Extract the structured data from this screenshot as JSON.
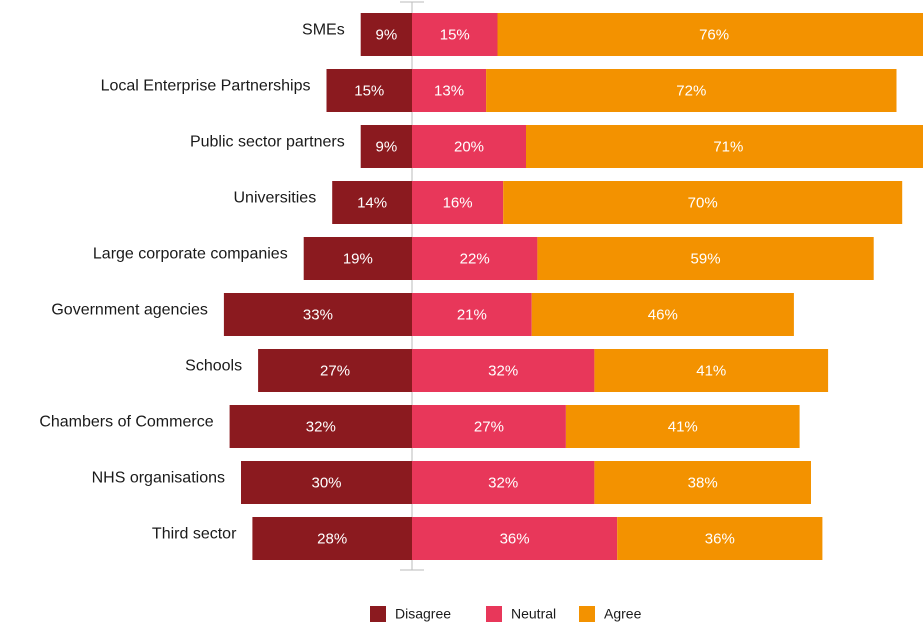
{
  "chart_data": {
    "type": "diverging_bar",
    "categories": [
      "SMEs",
      "Local Enterprise Partnerships",
      "Public sector partners",
      "Universities",
      "Large corporate companies",
      "Government agencies",
      "Schools",
      "Chambers of Commerce",
      "NHS organisations",
      "Third sector"
    ],
    "series": [
      {
        "name": "Disagree",
        "color": "#8b1a1f",
        "side": "left",
        "values": [
          9,
          15,
          9,
          14,
          19,
          33,
          27,
          32,
          30,
          28
        ],
        "value_labels": [
          "9%",
          "15%",
          "9%",
          "14%",
          "19%",
          "33%",
          "27%",
          "32%",
          "30%",
          "28%"
        ]
      },
      {
        "name": "Neutral",
        "color": "#e8375a",
        "side": "right",
        "values": [
          15,
          13,
          20,
          16,
          22,
          21,
          32,
          27,
          32,
          36
        ],
        "value_labels": [
          "15%",
          "13%",
          "20%",
          "16%",
          "22%",
          "21%",
          "32%",
          "27%",
          "32%",
          "36%"
        ]
      },
      {
        "name": "Agree",
        "color": "#f39200",
        "side": "right",
        "values": [
          76,
          72,
          71,
          70,
          59,
          46,
          41,
          41,
          38,
          36
        ],
        "value_labels": [
          "76%",
          "72%",
          "71%",
          "70%",
          "59%",
          "46%",
          "41%",
          "41%",
          "38%",
          "36%"
        ]
      }
    ],
    "legend": "bottom"
  }
}
